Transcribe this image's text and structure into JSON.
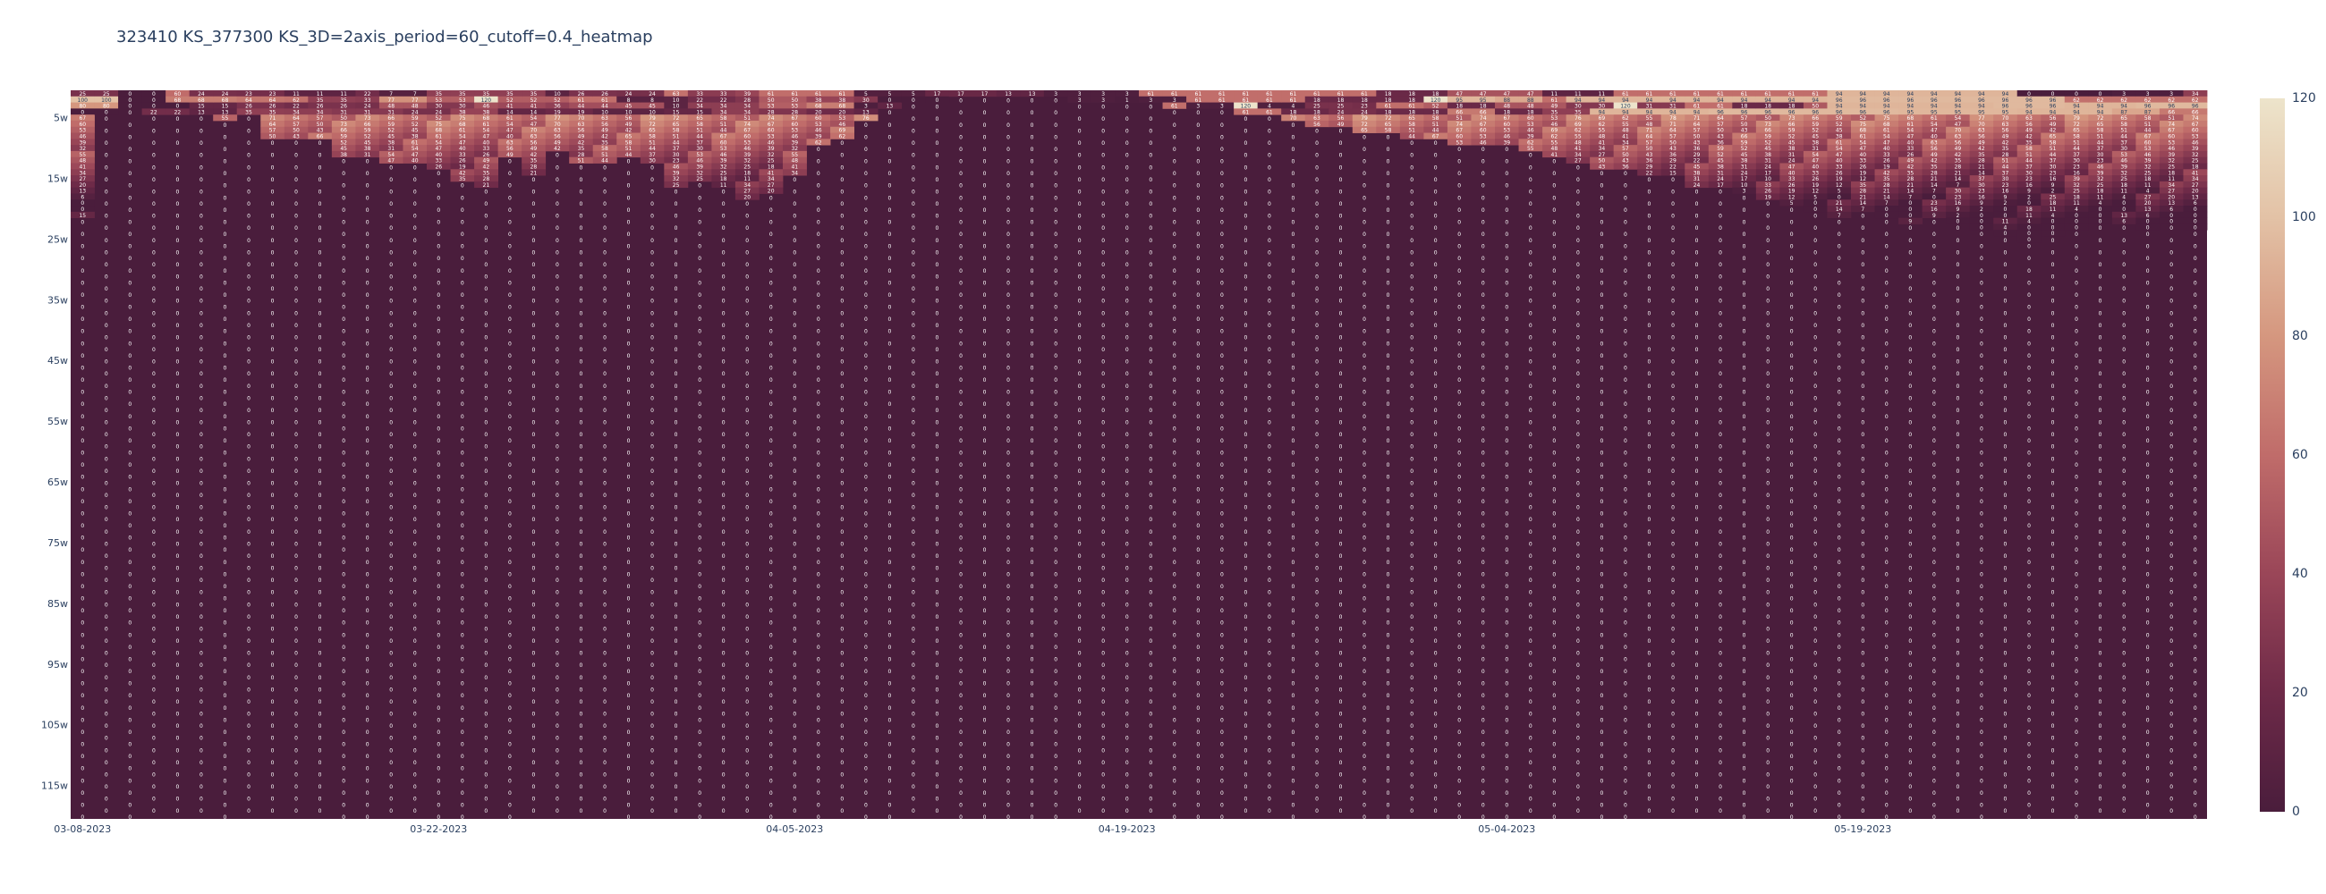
{
  "chart_data": {
    "type": "heatmap",
    "title": "323410 KS_377300 KS_3D=2axis_period=60_cutoff=0.4_heatmap",
    "x_tick_labels": [
      "03-08-2023",
      "03-22-2023",
      "04-05-2023",
      "04-19-2023",
      "05-04-2023",
      "05-19-2023"
    ],
    "y_tick_labels": [
      "5w",
      "15w",
      "25w",
      "35w",
      "45w",
      "55w",
      "65w",
      "75w",
      "85w",
      "95w",
      "105w",
      "115w"
    ],
    "y_range": [
      0,
      120
    ],
    "colorbar": {
      "min": 0,
      "max": 120,
      "tick_labels": [
        "0",
        "20",
        "40",
        "60",
        "80",
        "100",
        "120"
      ],
      "colorscale": [
        "#4a1d3c",
        "#6e2a48",
        "#9a4658",
        "#c06c6a",
        "#d5977f",
        "#e3c2a6",
        "#ede4cb"
      ]
    },
    "column_count": 90,
    "row_count": 120,
    "top_rows": [
      [
        25,
        0,
        60,
        24,
        23,
        11,
        11,
        22,
        7,
        35,
        35,
        35,
        10,
        26,
        24,
        63,
        33,
        39,
        61,
        61,
        5,
        5,
        17,
        17,
        13,
        3,
        3,
        3,
        61,
        61,
        61,
        61,
        61,
        61,
        18,
        18,
        47,
        47,
        11,
        11,
        61,
        61,
        61,
        61,
        61,
        61,
        94,
        94,
        94,
        94,
        94,
        0,
        0,
        3,
        3,
        34
      ],
      [
        100,
        0,
        68,
        68,
        64,
        62,
        35,
        33,
        77,
        53,
        120,
        52,
        52,
        61,
        8,
        10,
        22,
        28,
        50,
        38,
        30,
        0,
        0,
        13,
        1,
        3,
        3,
        1,
        3,
        61,
        61,
        61,
        18,
        18,
        18,
        120,
        95,
        88,
        61,
        94,
        94,
        94,
        94,
        94,
        94,
        94,
        96,
        96,
        96,
        96,
        96,
        96,
        62,
        62,
        62,
        62
      ],
      [
        80,
        0,
        0,
        15,
        26,
        22,
        26,
        24,
        48,
        30,
        46,
        41,
        36,
        44,
        45,
        10,
        34,
        34,
        53,
        68,
        3,
        13,
        20,
        12,
        23,
        50,
        7,
        3,
        61,
        3,
        120,
        4,
        25,
        23,
        61,
        52,
        18,
        48,
        49,
        30,
        120,
        31,
        61,
        18,
        18,
        50,
        94,
        94,
        94,
        94,
        96,
        96,
        94,
        94,
        96,
        96
      ],
      [
        0,
        22,
        13,
        35,
        34,
        31,
        24,
        38,
        14,
        19,
        10,
        15,
        34,
        28,
        20,
        13,
        4,
        7,
        2,
        3,
        26,
        3,
        61,
        18,
        24,
        18,
        66,
        18,
        35,
        94,
        94,
        96,
        96,
        96,
        96,
        95,
        95,
        94,
        94,
        87,
        66
      ]
    ],
    "column_profile": [
      {
        "x": "03-08-2023",
        "depth": 21
      },
      {
        "x": "",
        "depth": 4
      },
      {
        "x": "",
        "depth": 3
      },
      {
        "x": "",
        "depth": 4
      },
      {
        "x": "",
        "depth": 4
      },
      {
        "x": "",
        "depth": 4
      },
      {
        "x": "",
        "depth": 5
      },
      {
        "x": "",
        "depth": 4
      },
      {
        "x": "",
        "depth": 8
      },
      {
        "x": "",
        "depth": 8
      },
      {
        "x": "",
        "depth": 8
      },
      {
        "x": "",
        "depth": 11
      },
      {
        "x": "",
        "depth": 11
      },
      {
        "x": "",
        "depth": 12
      },
      {
        "x": "",
        "depth": 12
      },
      {
        "x": "03-22-2023",
        "depth": 13
      },
      {
        "x": "",
        "depth": 15
      },
      {
        "x": "",
        "depth": 16
      },
      {
        "x": "",
        "depth": 11
      },
      {
        "x": "",
        "depth": 14
      },
      {
        "x": "",
        "depth": 10
      },
      {
        "x": "",
        "depth": 12
      },
      {
        "x": "",
        "depth": 12
      },
      {
        "x": "",
        "depth": 11
      },
      {
        "x": "",
        "depth": 12
      },
      {
        "x": "",
        "depth": 16
      },
      {
        "x": "",
        "depth": 15
      },
      {
        "x": "",
        "depth": 16
      },
      {
        "x": "",
        "depth": 18
      },
      {
        "x": "",
        "depth": 17
      },
      {
        "x": "04-05-2023",
        "depth": 14
      },
      {
        "x": "",
        "depth": 9
      },
      {
        "x": "",
        "depth": 8
      },
      {
        "x": "",
        "depth": 5
      },
      {
        "x": "",
        "depth": 3
      },
      {
        "x": "",
        "depth": 2
      },
      {
        "x": "",
        "depth": 2
      },
      {
        "x": "",
        "depth": 1
      },
      {
        "x": "",
        "depth": 1
      },
      {
        "x": "",
        "depth": 1
      },
      {
        "x": "",
        "depth": 1
      },
      {
        "x": "",
        "depth": 1
      },
      {
        "x": "",
        "depth": 2
      },
      {
        "x": "",
        "depth": 2
      },
      {
        "x": "04-19-2023",
        "depth": 2
      },
      {
        "x": "",
        "depth": 2
      },
      {
        "x": "",
        "depth": 3
      },
      {
        "x": "",
        "depth": 3
      },
      {
        "x": "",
        "depth": 3
      },
      {
        "x": "",
        "depth": 4
      },
      {
        "x": "",
        "depth": 4
      },
      {
        "x": "",
        "depth": 5
      },
      {
        "x": "",
        "depth": 6
      },
      {
        "x": "",
        "depth": 6
      },
      {
        "x": "",
        "depth": 7
      },
      {
        "x": "",
        "depth": 7
      },
      {
        "x": "",
        "depth": 8
      },
      {
        "x": "",
        "depth": 8
      },
      {
        "x": "",
        "depth": 9
      },
      {
        "x": "",
        "depth": 9
      },
      {
        "x": "05-04-2023",
        "depth": 9
      },
      {
        "x": "",
        "depth": 10
      },
      {
        "x": "",
        "depth": 11
      },
      {
        "x": "",
        "depth": 12
      },
      {
        "x": "",
        "depth": 13
      },
      {
        "x": "",
        "depth": 13
      },
      {
        "x": "",
        "depth": 14
      },
      {
        "x": "",
        "depth": 14
      },
      {
        "x": "",
        "depth": 16
      },
      {
        "x": "",
        "depth": 16
      },
      {
        "x": "",
        "depth": 17
      },
      {
        "x": "",
        "depth": 18
      },
      {
        "x": "",
        "depth": 19
      },
      {
        "x": "",
        "depth": 20
      },
      {
        "x": "",
        "depth": 21
      },
      {
        "x": "05-19-2023",
        "depth": 20
      },
      {
        "x": "",
        "depth": 21
      },
      {
        "x": "",
        "depth": 22
      },
      {
        "x": "",
        "depth": 21
      },
      {
        "x": "",
        "depth": 22
      },
      {
        "x": "",
        "depth": 23
      },
      {
        "x": "",
        "depth": 24
      },
      {
        "x": "",
        "depth": 25
      },
      {
        "x": "",
        "depth": 24
      },
      {
        "x": "",
        "depth": 23
      },
      {
        "x": "",
        "depth": 22
      },
      {
        "x": "",
        "depth": 22
      },
      {
        "x": "",
        "depth": 23
      },
      {
        "x": "",
        "depth": 22
      },
      {
        "x": "",
        "depth": 23
      }
    ]
  }
}
